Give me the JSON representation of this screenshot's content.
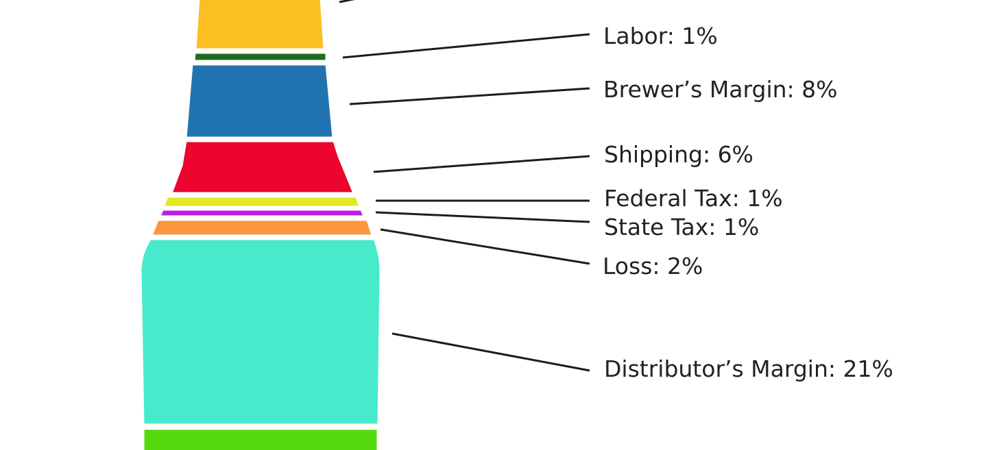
{
  "chart_data": {
    "type": "pictorial-bar",
    "shape": "beer bottle",
    "title": "",
    "segments": [
      {
        "label": "",
        "value": null,
        "color": "#FBBF24",
        "display": ""
      },
      {
        "label": "Labor",
        "value": 1,
        "color": "#1F6B1F",
        "display": "Labor: 1%"
      },
      {
        "label": "Brewer’s Margin",
        "value": 8,
        "color": "#2274B0",
        "display": "Brewer’s Margin: 8%"
      },
      {
        "label": "Shipping",
        "value": 6,
        "color": "#EB052F",
        "display": "Shipping: 6%"
      },
      {
        "label": "Federal Tax",
        "value": 1,
        "color": "#E3E825",
        "display": "Federal Tax: 1%"
      },
      {
        "label": "State Tax",
        "value": 1,
        "color": "#BE20E0",
        "display": "State Tax: 1%"
      },
      {
        "label": "Loss",
        "value": 2,
        "color": "#FB963C",
        "display": "Loss: 2%"
      },
      {
        "label": "Distributor’s Margin",
        "value": 21,
        "color": "#47EBCB",
        "display": "Distributor’s Margin: 21%"
      },
      {
        "label": "",
        "value": null,
        "color": "#54D90F",
        "display": ""
      }
    ]
  }
}
